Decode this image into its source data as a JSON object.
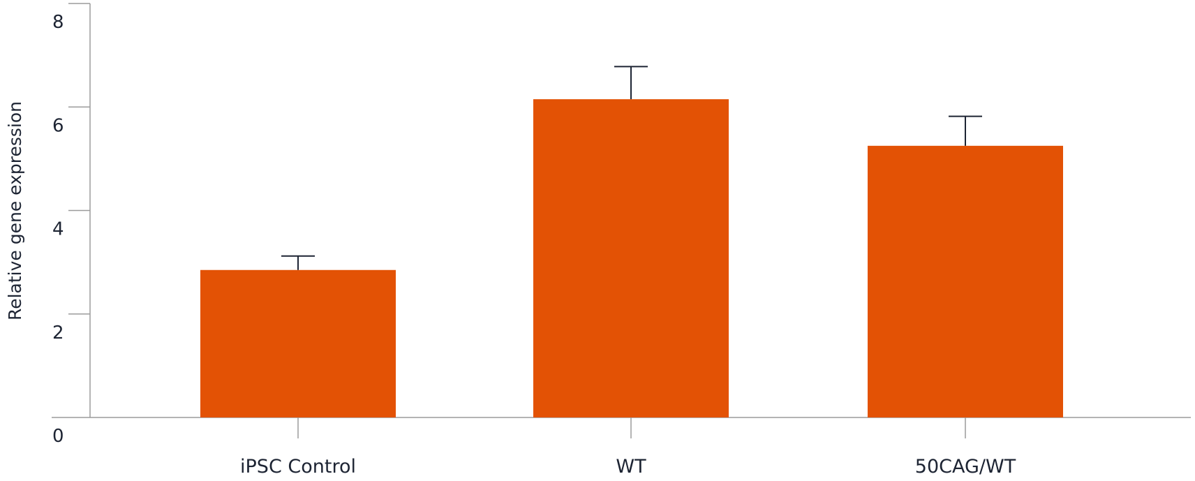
{
  "chart_data": {
    "type": "bar",
    "title": "",
    "xlabel": "",
    "ylabel": "Relative gene expression",
    "categories": [
      "iPSC Control",
      "WT",
      "50CAG/WT"
    ],
    "values": [
      2.85,
      6.15,
      5.25
    ],
    "error_upper": [
      3.12,
      6.78,
      5.82
    ],
    "ylim": [
      0,
      8
    ],
    "yticks": [
      0,
      2,
      4,
      6,
      8
    ],
    "grid": false,
    "legend": "none",
    "colors": {
      "bar": "#e35205",
      "axis": "#9b9b9b",
      "error_bar": "#1d2433",
      "text": "#1d2433"
    }
  }
}
